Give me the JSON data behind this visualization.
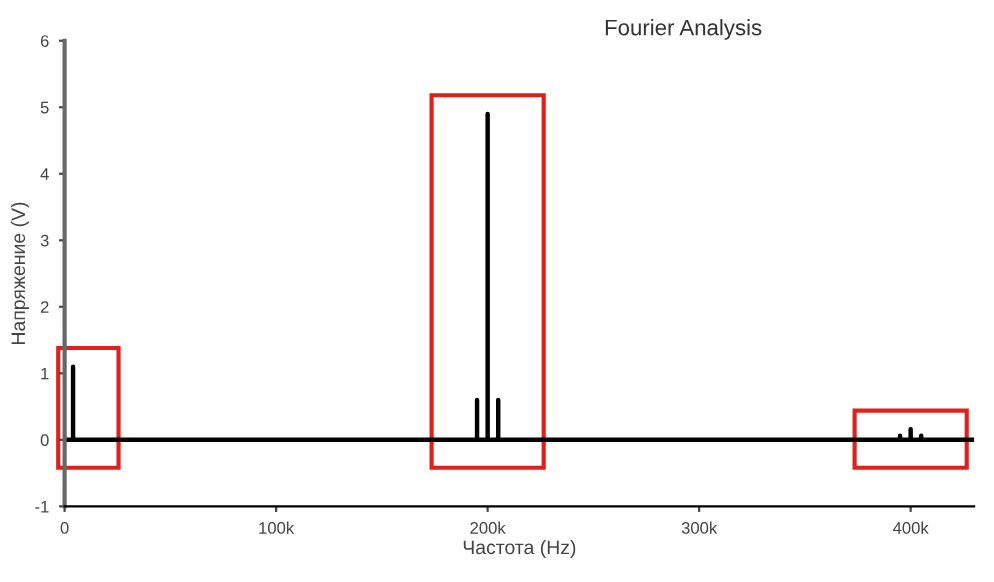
{
  "chart_data": {
    "type": "line",
    "title": "Fourier Analysis",
    "xlabel": "Частота (Hz)",
    "ylabel": "Напряжение (V)",
    "series": [
      {
        "color": "#000000",
        "x": [
          0,
          4000,
          4000,
          4000,
          195000,
          195000,
          195000,
          200000,
          200000,
          200000,
          205000,
          205000,
          205000,
          395000,
          395000,
          395000,
          400000,
          400000,
          400000,
          405000,
          405000,
          405000,
          430000
        ],
        "values": [
          0,
          0,
          1.1,
          0,
          0,
          0.6,
          0,
          0,
          4.9,
          0,
          0,
          0.6,
          0,
          0,
          0.06,
          0,
          0,
          0.16,
          0,
          0,
          0.06,
          0,
          0
        ]
      }
    ],
    "xlim": [
      0,
      430000
    ],
    "ylim": [
      -1,
      6
    ],
    "xticks": [
      0,
      {
        "value": 100000,
        "label": "100k"
      },
      {
        "value": 200000,
        "label": "200k"
      },
      {
        "value": 300000,
        "label": "300k"
      },
      {
        "value": 400000,
        "label": "400k"
      }
    ],
    "yticks": [
      -1,
      0,
      1,
      2,
      3,
      4,
      5,
      6
    ],
    "grid": false,
    "legend": false,
    "marker": "none",
    "line_style": "solid"
  }
}
